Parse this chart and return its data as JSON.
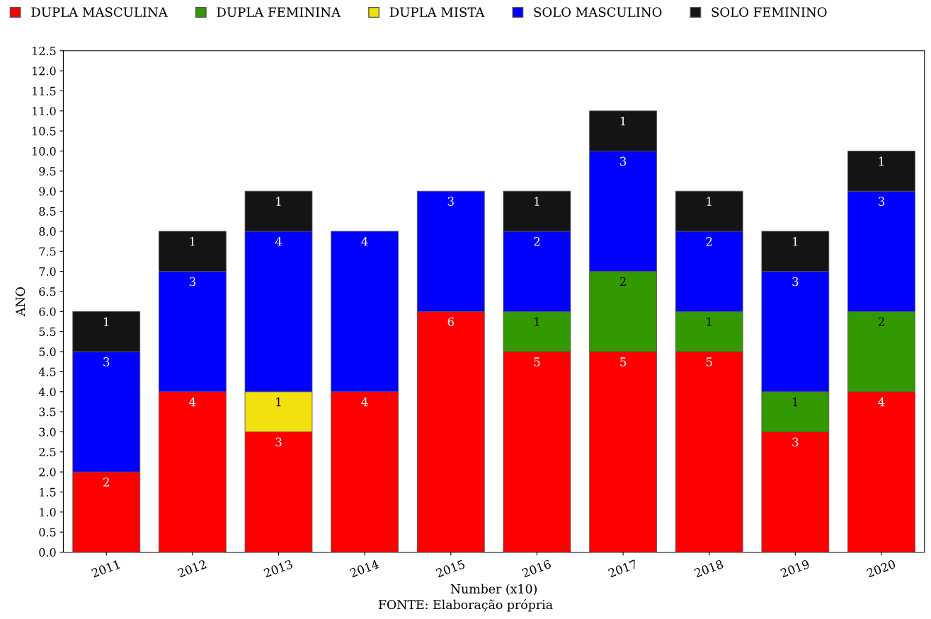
{
  "chart_data": {
    "type": "bar",
    "stacked": true,
    "xlabel": "Number (x10)",
    "ylabel": "ANO",
    "annotations": [
      "FONTE: Elaboração própria"
    ],
    "categories": [
      "2011",
      "2012",
      "2013",
      "2014",
      "2015",
      "2016",
      "2017",
      "2018",
      "2019",
      "2020"
    ],
    "series": [
      {
        "name": "DUPLA MASCULINA",
        "color": "#ff0000",
        "values": [
          2,
          4,
          3,
          4,
          6,
          5,
          5,
          5,
          3,
          4
        ]
      },
      {
        "name": "DUPLA FEMININA",
        "color": "#339900",
        "values": [
          null,
          null,
          null,
          null,
          null,
          1,
          2,
          1,
          1,
          2
        ]
      },
      {
        "name": "DUPLA MISTA",
        "color": "#f2e10f",
        "values": [
          null,
          null,
          1,
          null,
          null,
          null,
          null,
          null,
          null,
          null
        ]
      },
      {
        "name": "SOLO MASCULINO",
        "color": "#0000ff",
        "values": [
          3,
          3,
          4,
          4,
          3,
          2,
          3,
          2,
          3,
          3
        ]
      },
      {
        "name": "SOLO FEMININO",
        "color": "#141414",
        "values": [
          1,
          1,
          1,
          null,
          null,
          1,
          1,
          1,
          1,
          1
        ]
      }
    ],
    "ylim": [
      0,
      12.5
    ],
    "yticks": [
      {
        "value": 0,
        "label": "0.0"
      },
      {
        "value": 0.5,
        "label": "0.5"
      },
      {
        "value": 1,
        "label": "1.0"
      },
      {
        "value": 1.5,
        "label": "1.5"
      },
      {
        "value": 2,
        "label": "2.0"
      },
      {
        "value": 2.5,
        "label": "2.5"
      },
      {
        "value": 3,
        "label": "3.0"
      },
      {
        "value": 3.5,
        "label": "3.5"
      },
      {
        "value": 4,
        "label": "4.0"
      },
      {
        "value": 4.5,
        "label": "4.5"
      },
      {
        "value": 5,
        "label": "5.0"
      },
      {
        "value": 5.5,
        "label": "5.5"
      },
      {
        "value": 6,
        "label": "6.0"
      },
      {
        "value": 6.5,
        "label": "6.5"
      },
      {
        "value": 7,
        "label": "7.0"
      },
      {
        "value": 7.5,
        "label": "7.5"
      },
      {
        "value": 8,
        "label": "8.0"
      },
      {
        "value": 8.5,
        "label": "8.5"
      },
      {
        "value": 9,
        "label": "9.0"
      },
      {
        "value": 9.5,
        "label": "9.5"
      },
      {
        "value": 10,
        "label": "10.0"
      },
      {
        "value": 10.5,
        "label": "10.5"
      },
      {
        "value": 11,
        "label": "11.0"
      },
      {
        "value": 11.5,
        "label": "11.5"
      },
      {
        "value": 12,
        "label": "12.0"
      },
      {
        "value": 12.5,
        "label": "12.5"
      }
    ],
    "grid": false,
    "legend": "top",
    "data_labels": true
  }
}
